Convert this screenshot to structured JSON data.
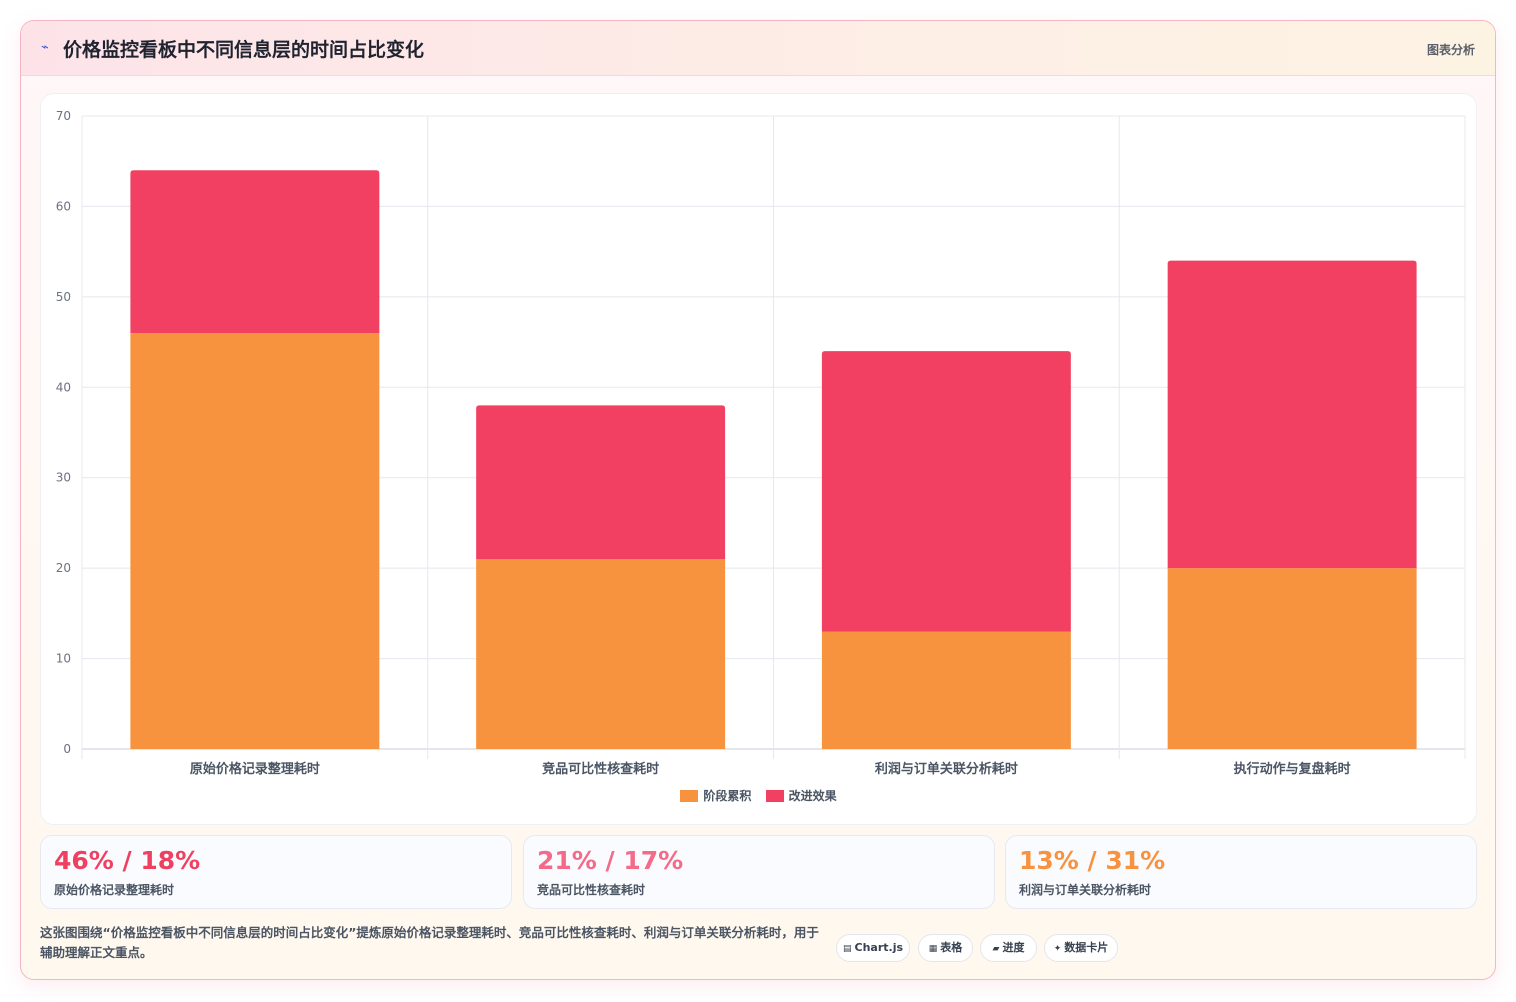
{
  "header": {
    "icon": "sparkle-icon",
    "title": "价格监控看板中不同信息层的时间占比变化",
    "tag": "图表分析"
  },
  "colors": {
    "stage": "#f7923f",
    "effect": "#f24062",
    "value_pink": "#f04060",
    "value_rose": "#f46a88",
    "value_orange": "#f7923f"
  },
  "chart_data": {
    "type": "bar",
    "stacked": true,
    "categories": [
      "原始价格记录整理耗时",
      "竞品可比性核查耗时",
      "利润与订单关联分析耗时",
      "执行动作与复盘耗时"
    ],
    "series": [
      {
        "name": "阶段累积",
        "values": [
          46,
          21,
          13,
          20
        ]
      },
      {
        "name": "改进效果",
        "values": [
          18,
          17,
          31,
          34
        ]
      }
    ],
    "ylim": [
      0,
      70
    ],
    "yticks": [
      "0",
      "10",
      "20",
      "30",
      "40",
      "50",
      "60",
      "70"
    ],
    "grid": true,
    "legend_position": "bottom"
  },
  "stats": [
    {
      "value": "46% / 18%",
      "label": "原始价格记录整理耗时"
    },
    {
      "value": "21% / 17%",
      "label": "竞品可比性核查耗时"
    },
    {
      "value": "13% / 31%",
      "label": "利润与订单关联分析耗时"
    }
  ],
  "footer": {
    "text": "这张图围绕“价格监控看板中不同信息层的时间占比变化”提炼原始价格记录整理耗时、竞品可比性核查耗时、利润与订单关联分析耗时，用于辅助理解正文重点。",
    "pills": [
      {
        "icon": "chart-icon",
        "glyph": "▤",
        "label": "Chart.js"
      },
      {
        "icon": "table-icon",
        "glyph": "▦",
        "label": "表格"
      },
      {
        "icon": "progress-icon",
        "glyph": "▰",
        "label": "进度"
      },
      {
        "icon": "card-icon",
        "glyph": "✦",
        "label": "数据卡片"
      }
    ]
  }
}
